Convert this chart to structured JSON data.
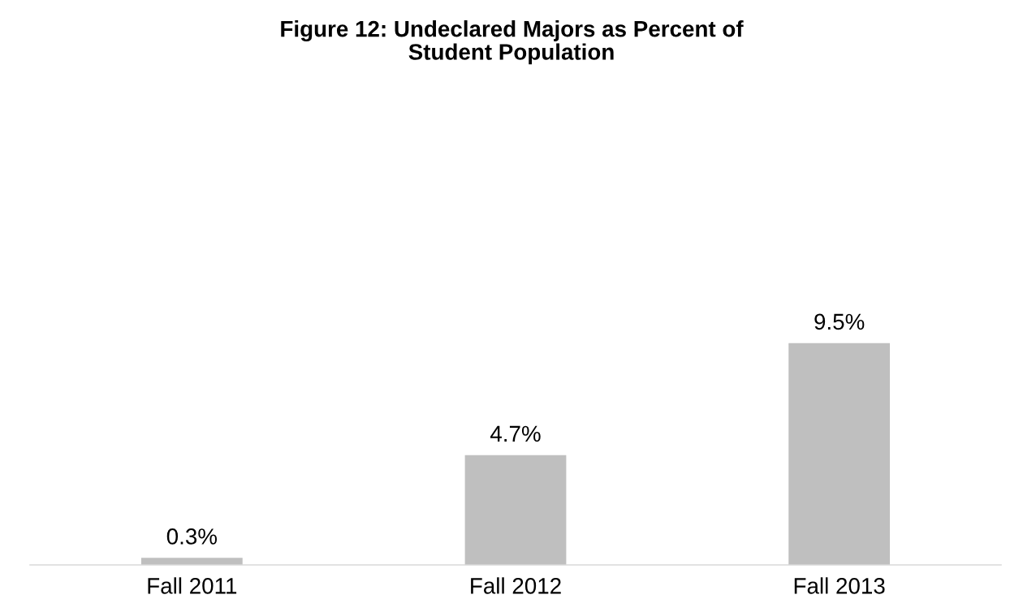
{
  "chart_data": {
    "type": "bar",
    "title": "Figure 12: Undeclared Majors as Percent of\nStudent Population",
    "categories": [
      "Fall 2011",
      "Fall 2012",
      "Fall 2013"
    ],
    "values": [
      0.3,
      4.7,
      9.5
    ],
    "color": "#bfbfbf",
    "value_labels": [
      "0.3%",
      "4.7%",
      "9.5%"
    ],
    "tick_labels": "x",
    "grid": false,
    "legend": false
  }
}
